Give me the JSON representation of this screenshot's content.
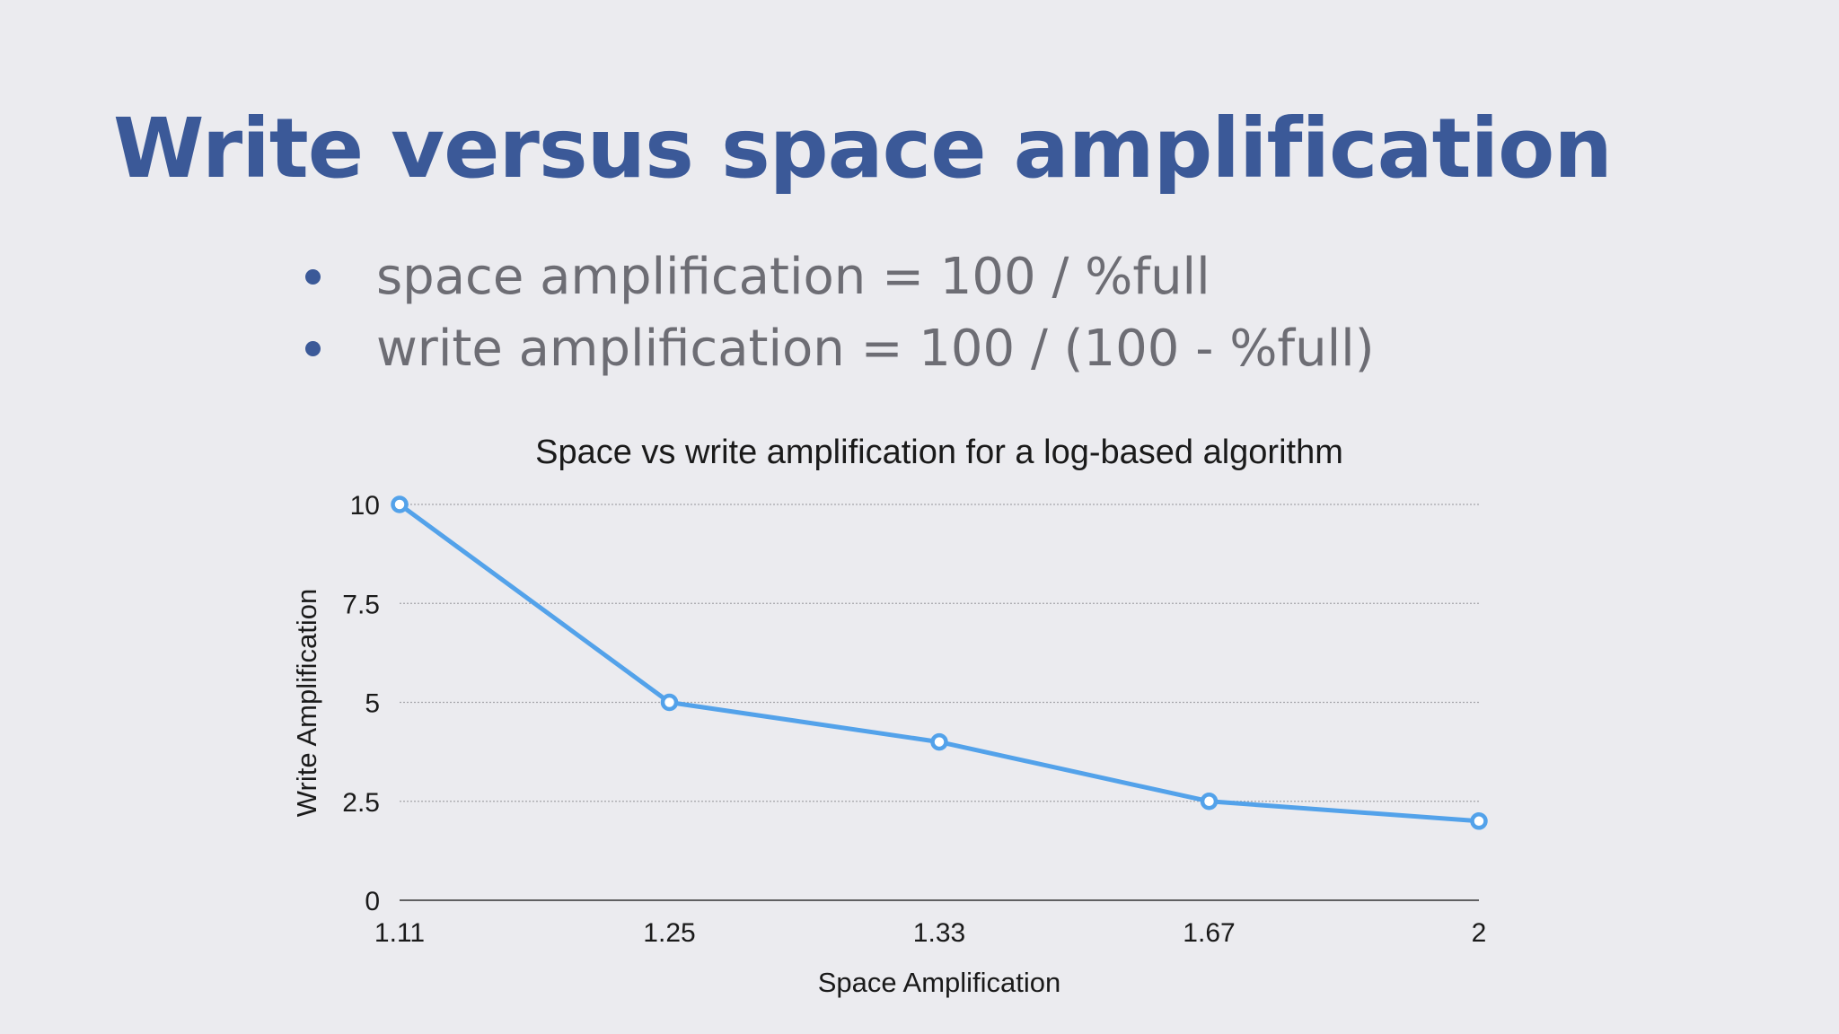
{
  "slide": {
    "title": "Write versus space amplification",
    "bullets": [
      "space amplification  = 100 / %full",
      "write amplification = 100 / (100 - %full)"
    ]
  },
  "colors": {
    "title": "#3b5998",
    "bullet_text": "#6d6d74",
    "bullet_dot": "#3b5998",
    "series_line": "#53a2ea",
    "background": "#ebebef"
  },
  "chart_data": {
    "type": "line",
    "title": "Space vs write amplification for a log-based algorithm",
    "xlabel": "Space Amplification",
    "ylabel": "Write Amplification",
    "categories": [
      "1.11",
      "1.25",
      "1.33",
      "1.67",
      "2"
    ],
    "series": [
      {
        "values": [
          10,
          5,
          4,
          2.5,
          2
        ]
      }
    ],
    "ylim": [
      0,
      10
    ],
    "yticks": [
      0,
      2.5,
      5,
      7.5,
      10
    ],
    "ytick_labels": [
      "0",
      "2.5",
      "5",
      "7.5",
      "10"
    ],
    "grid": true,
    "legend": "none"
  }
}
